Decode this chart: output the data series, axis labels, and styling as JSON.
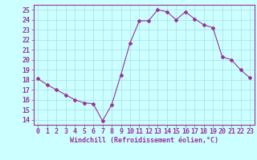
{
  "x": [
    0,
    1,
    2,
    3,
    4,
    5,
    6,
    7,
    8,
    9,
    10,
    11,
    12,
    13,
    14,
    15,
    16,
    17,
    18,
    19,
    20,
    21,
    22,
    23
  ],
  "y": [
    18.1,
    17.5,
    17.0,
    16.5,
    16.0,
    15.7,
    15.6,
    13.9,
    15.5,
    18.5,
    21.7,
    23.9,
    23.9,
    25.0,
    24.8,
    24.0,
    24.8,
    24.1,
    23.5,
    23.2,
    20.3,
    20.0,
    19.0,
    18.2
  ],
  "line_color": "#993399",
  "marker": "D",
  "marker_size": 2,
  "bg_color": "#ccffff",
  "grid_color": "#aadddd",
  "xlabel": "Windchill (Refroidissement éolien,°C)",
  "ylabel_ticks": [
    14,
    15,
    16,
    17,
    18,
    19,
    20,
    21,
    22,
    23,
    24,
    25
  ],
  "xlim": [
    -0.5,
    23.5
  ],
  "ylim": [
    13.5,
    25.5
  ],
  "xlabel_fontsize": 6.0,
  "tick_fontsize": 6.0,
  "fig_width": 3.2,
  "fig_height": 2.0,
  "dpi": 100
}
